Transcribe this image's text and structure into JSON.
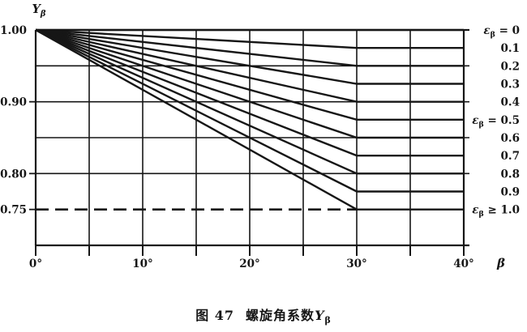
{
  "page": {
    "background": "#ffffff",
    "ink": "#161616"
  },
  "caption": {
    "figure_label": "图  47",
    "title": "螺旋角系数",
    "symbol": "Y",
    "symbol_subscript": "β"
  },
  "axis_titles": {
    "y_main": "Y",
    "y_subscript": "β",
    "x_main": "β"
  },
  "chart_data": {
    "type": "line",
    "title": "图 47 螺旋角系数 Yβ",
    "xlabel": "β",
    "ylabel": "Yβ",
    "xlim": [
      0,
      40
    ],
    "ylim": [
      0.7,
      1.0
    ],
    "x_gridline_step_deg": 5,
    "grid": true,
    "legend_position": "right",
    "x_tick_labels": [
      {
        "value": 0,
        "label": "0°"
      },
      {
        "value": 10,
        "label": "10°"
      },
      {
        "value": 20,
        "label": "20°"
      },
      {
        "value": 30,
        "label": "30°"
      },
      {
        "value": 40,
        "label": "40°"
      }
    ],
    "y_gridlines": [
      0.95,
      0.9,
      0.85,
      0.8
    ],
    "y_tick_labels": [
      {
        "value": 1.0,
        "label": "1.00"
      },
      {
        "value": 0.9,
        "label": "0.90"
      },
      {
        "value": 0.8,
        "label": "0.80"
      },
      {
        "value": 0.75,
        "label": "0.75"
      }
    ],
    "limit_line": {
      "value": 0.75,
      "style": "dashed",
      "x_start": 0,
      "x_end": 30
    },
    "series": [
      {
        "epsilon_beta": "0",
        "legend": {
          "has_epsilon_prefix": true,
          "relation": "=",
          "value": "0"
        },
        "points": [
          [
            0,
            1.0
          ],
          [
            30,
            1.0
          ],
          [
            40,
            1.0
          ]
        ]
      },
      {
        "epsilon_beta": "0.1",
        "legend": {
          "has_epsilon_prefix": false,
          "relation": "",
          "value": "0.1"
        },
        "points": [
          [
            0,
            1.0
          ],
          [
            30,
            0.975
          ],
          [
            40,
            0.975
          ]
        ]
      },
      {
        "epsilon_beta": "0.2",
        "legend": {
          "has_epsilon_prefix": false,
          "relation": "",
          "value": "0.2"
        },
        "points": [
          [
            0,
            1.0
          ],
          [
            30,
            0.95
          ],
          [
            40,
            0.95
          ]
        ]
      },
      {
        "epsilon_beta": "0.3",
        "legend": {
          "has_epsilon_prefix": false,
          "relation": "",
          "value": "0.3"
        },
        "points": [
          [
            0,
            1.0
          ],
          [
            30,
            0.925
          ],
          [
            40,
            0.925
          ]
        ]
      },
      {
        "epsilon_beta": "0.4",
        "legend": {
          "has_epsilon_prefix": false,
          "relation": "",
          "value": "0.4"
        },
        "points": [
          [
            0,
            1.0
          ],
          [
            30,
            0.9
          ],
          [
            40,
            0.9
          ]
        ]
      },
      {
        "epsilon_beta": "0.5",
        "legend": {
          "has_epsilon_prefix": true,
          "relation": "=",
          "value": "0.5"
        },
        "points": [
          [
            0,
            1.0
          ],
          [
            30,
            0.875
          ],
          [
            40,
            0.875
          ]
        ]
      },
      {
        "epsilon_beta": "0.6",
        "legend": {
          "has_epsilon_prefix": false,
          "relation": "",
          "value": "0.6"
        },
        "points": [
          [
            0,
            1.0
          ],
          [
            30,
            0.85
          ],
          [
            40,
            0.85
          ]
        ]
      },
      {
        "epsilon_beta": "0.7",
        "legend": {
          "has_epsilon_prefix": false,
          "relation": "",
          "value": "0.7"
        },
        "points": [
          [
            0,
            1.0
          ],
          [
            30,
            0.825
          ],
          [
            40,
            0.825
          ]
        ]
      },
      {
        "epsilon_beta": "0.8",
        "legend": {
          "has_epsilon_prefix": false,
          "relation": "",
          "value": "0.8"
        },
        "points": [
          [
            0,
            1.0
          ],
          [
            30,
            0.8
          ],
          [
            40,
            0.8
          ]
        ]
      },
      {
        "epsilon_beta": "0.9",
        "legend": {
          "has_epsilon_prefix": false,
          "relation": "",
          "value": "0.9"
        },
        "points": [
          [
            0,
            1.0
          ],
          [
            30,
            0.775
          ],
          [
            40,
            0.775
          ]
        ]
      },
      {
        "epsilon_beta": "≥1.0",
        "legend": {
          "has_epsilon_prefix": true,
          "relation": "≥",
          "value": "1.0"
        },
        "points": [
          [
            0,
            1.0
          ],
          [
            30,
            0.75
          ],
          [
            40,
            0.75
          ]
        ]
      }
    ]
  }
}
